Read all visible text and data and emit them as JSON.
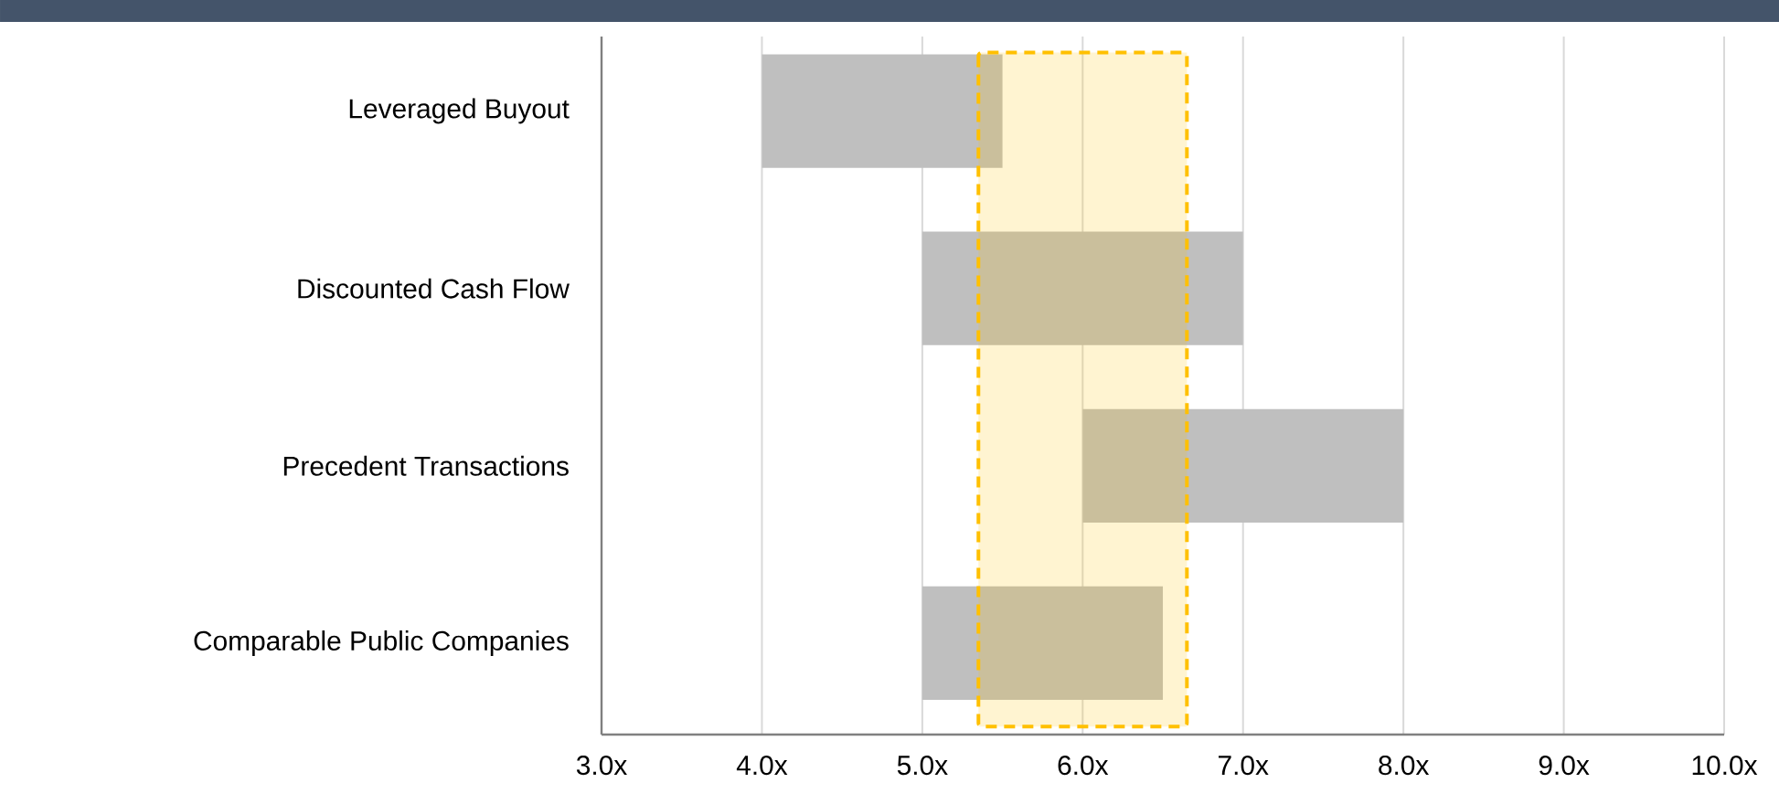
{
  "chart_data": {
    "type": "bar",
    "orientation": "horizontal",
    "categories": [
      "Leveraged Buyout",
      "Discounted Cash Flow",
      "Precedent Transactions",
      "Comparable Public Companies"
    ],
    "base": [
      4.0,
      5.0,
      6.0,
      5.0
    ],
    "values": [
      1.5,
      2.0,
      2.0,
      1.5
    ],
    "color": "#bfbfbf",
    "xlim": [
      3,
      10
    ],
    "xticks": [
      {
        "value": 3,
        "label": "3.0x"
      },
      {
        "value": 4,
        "label": "4.0x"
      },
      {
        "value": 5,
        "label": "5.0x"
      },
      {
        "value": 6,
        "label": "6.0x"
      },
      {
        "value": 7,
        "label": "7.0x"
      },
      {
        "value": 8,
        "label": "8.0x"
      },
      {
        "value": 9,
        "label": "9.0x"
      },
      {
        "value": 10,
        "label": "10.0x"
      }
    ],
    "bands": [
      {
        "axis": "x",
        "from": 5.35,
        "to": 6.65,
        "color": "#ffc000"
      }
    ],
    "grid": "x"
  }
}
